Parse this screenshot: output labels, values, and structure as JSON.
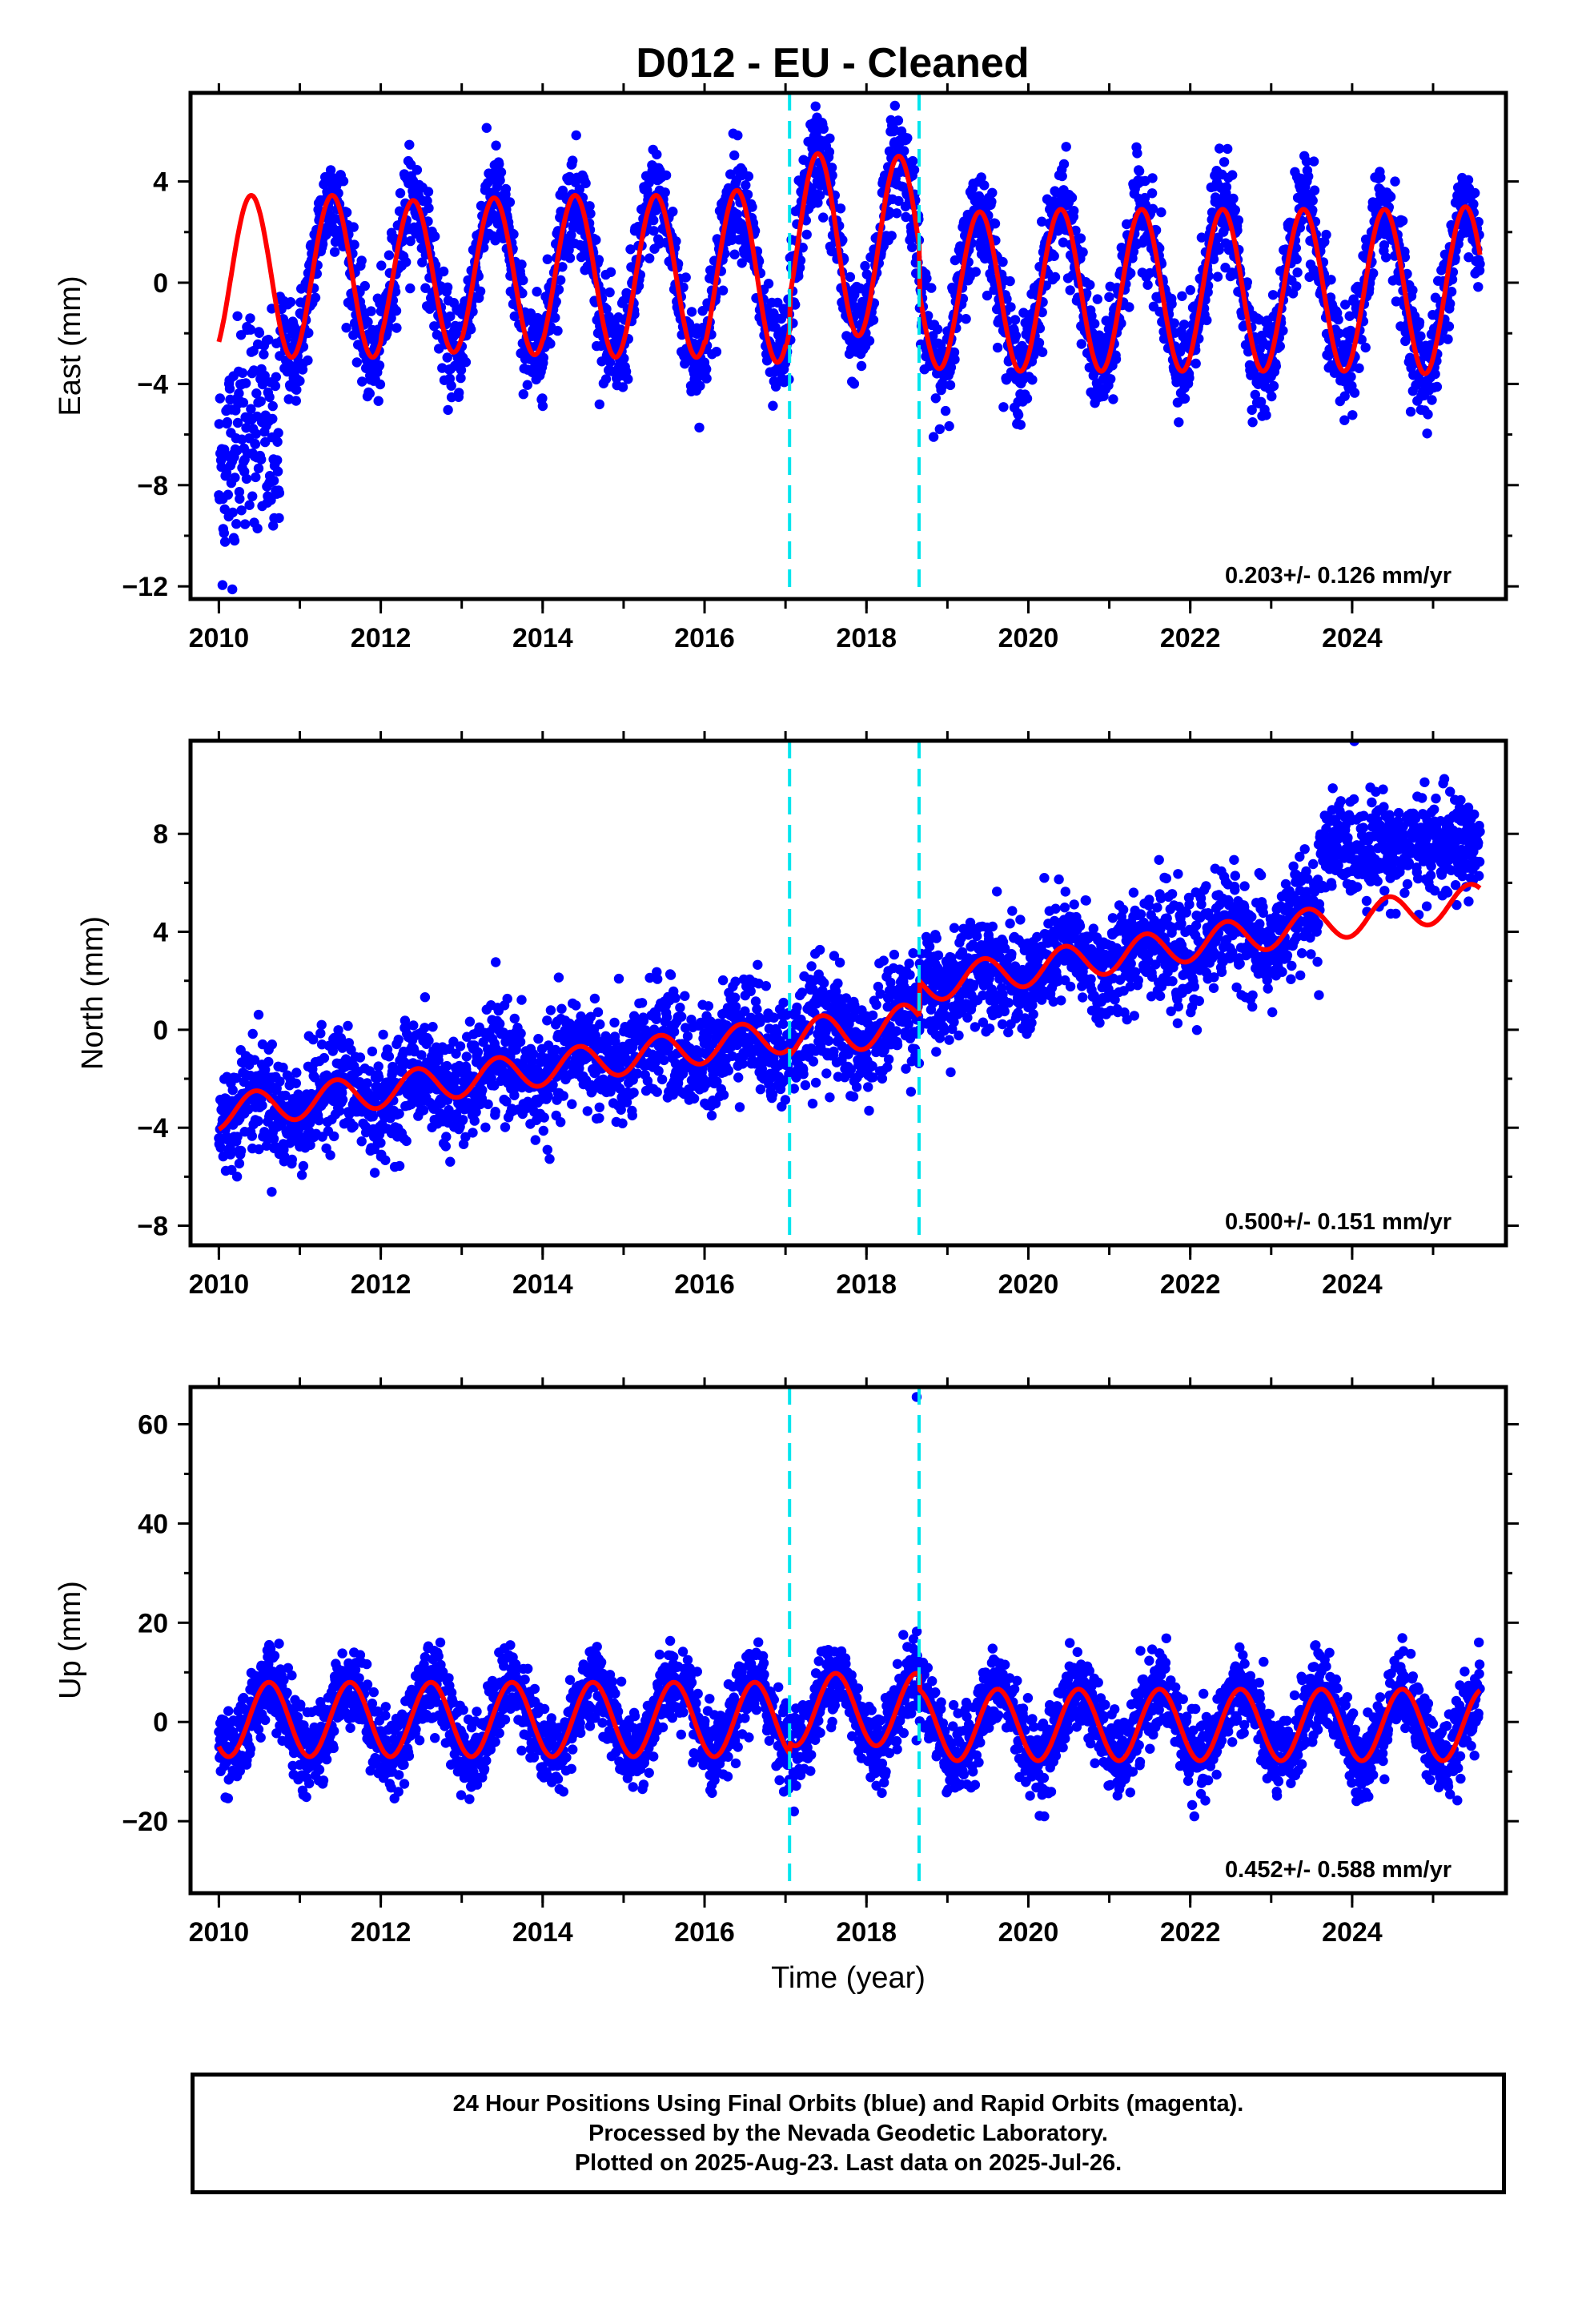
{
  "title": "D012  - EU - Cleaned",
  "colors": {
    "points": "#0000ff",
    "model": "#ff0000",
    "offsets": "#00e5ee",
    "frame": "#000000"
  },
  "offset_lines_year": [
    2017.05,
    2018.65
  ],
  "chart_data": [
    {
      "type": "scatter",
      "component": "east",
      "ylabel": "East (mm)",
      "xlim": [
        2009.65,
        2025.9
      ],
      "ylim": [
        -12.5,
        7.5
      ],
      "yticks": [
        -12,
        -8,
        -4,
        0,
        4
      ],
      "ytick_labels": [
        "−12",
        "−8",
        "−4",
        "0",
        "4"
      ],
      "xticks": [
        2010,
        2012,
        2014,
        2016,
        2018,
        2020,
        2022,
        2024
      ],
      "xtick_labels": [
        "2010",
        "2012",
        "2014",
        "2016",
        "2018",
        "2020",
        "2022",
        "2024"
      ],
      "rate_label": "0.203+/- 0.126 mm/yr",
      "model": {
        "segments": [
          {
            "x0": 2010.0,
            "x1": 2017.05,
            "mean": 0.25,
            "amp": [
              3.2,
              3.2,
              3.0,
              3.1,
              3.2,
              3.2,
              3.4,
              3.6
            ]
          },
          {
            "x0": 2017.05,
            "x1": 2018.65,
            "mean": 1.5,
            "amp": [
              3.6,
              3.5,
              3.6
            ]
          },
          {
            "x0": 2018.65,
            "x1": 2025.58,
            "mean": -0.3,
            "amp": [
              3.1,
              3.2,
              3.2,
              3.2,
              3.2,
              3.2,
              3.3,
              3.2
            ]
          }
        ],
        "peak_phase": 0.4
      },
      "scatter": {
        "x0": 2010.0,
        "x1": 2025.58,
        "step": 0.0045,
        "noise": 1.0,
        "early_x1": 2010.75,
        "early_mean": -6.5,
        "early_noise": 2.2
      }
    },
    {
      "type": "scatter",
      "component": "north",
      "ylabel": "North (mm)",
      "xlim": [
        2009.65,
        2025.9
      ],
      "ylim": [
        -8.8,
        11.8
      ],
      "yticks": [
        -8,
        -4,
        0,
        4,
        8
      ],
      "ytick_labels": [
        "−8",
        "−4",
        "0",
        "4",
        "8"
      ],
      "xticks": [
        2010,
        2012,
        2014,
        2016,
        2018,
        2020,
        2022,
        2024
      ],
      "xtick_labels": [
        "2010",
        "2012",
        "2014",
        "2016",
        "2018",
        "2020",
        "2022",
        "2024"
      ],
      "rate_label": "0.500+/- 0.151 mm/yr",
      "model": {
        "segments": [
          {
            "x0": 2010.0,
            "x1": 2017.05,
            "y0": -3.4,
            "y1": -0.2,
            "amp": 0.7
          },
          {
            "x0": 2017.05,
            "x1": 2018.65,
            "y0": -0.4,
            "y1": 0.3,
            "amp": 0.8
          },
          {
            "x0": 2018.65,
            "x1": 2025.58,
            "y0": 1.8,
            "y1": 5.3,
            "amp": 0.7
          }
        ],
        "peak_phase": 0.45
      },
      "scatter": {
        "x0": 2010.0,
        "x1": 2025.58,
        "step": 0.0045,
        "noise": 1.1,
        "jump_x": 2023.6,
        "jump_mean": 7.5,
        "jump_noise": 1.0
      }
    },
    {
      "type": "scatter",
      "component": "up",
      "ylabel": "Up (mm)",
      "xlim": [
        2009.65,
        2025.9
      ],
      "ylim": [
        -34.5,
        67.5
      ],
      "yticks": [
        -20,
        0,
        20,
        40,
        60
      ],
      "ytick_labels": [
        "−20",
        "0",
        "20",
        "40",
        "60"
      ],
      "xticks": [
        2010,
        2012,
        2014,
        2016,
        2018,
        2020,
        2022,
        2024
      ],
      "xtick_labels": [
        "2010",
        "2012",
        "2014",
        "2016",
        "2018",
        "2020",
        "2022",
        "2024"
      ],
      "xlabel": "Time (year)",
      "rate_label": "0.452+/- 0.588 mm/yr",
      "model": {
        "segments": [
          {
            "x0": 2010.0,
            "x1": 2017.05,
            "mean": 0.5,
            "amp": 7.5
          },
          {
            "x0": 2017.05,
            "x1": 2018.65,
            "mean": 2.5,
            "amp": 7.3
          },
          {
            "x0": 2018.65,
            "x1": 2025.58,
            "mean": -0.6,
            "amp": 7.2
          }
        ],
        "peak_phase": 0.62
      },
      "scatter": {
        "x0": 2010.0,
        "x1": 2025.58,
        "step": 0.0045,
        "noise": 4.0,
        "outlier": [
          2018.62,
          65.5
        ]
      }
    }
  ],
  "footer": {
    "line1": "24 Hour Positions Using Final Orbits (blue) and Rapid Orbits (magenta).",
    "line2": "Processed by the Nevada Geodetic Laboratory.",
    "line3": "Plotted on 2025-Aug-23. Last data on 2025-Jul-26."
  }
}
